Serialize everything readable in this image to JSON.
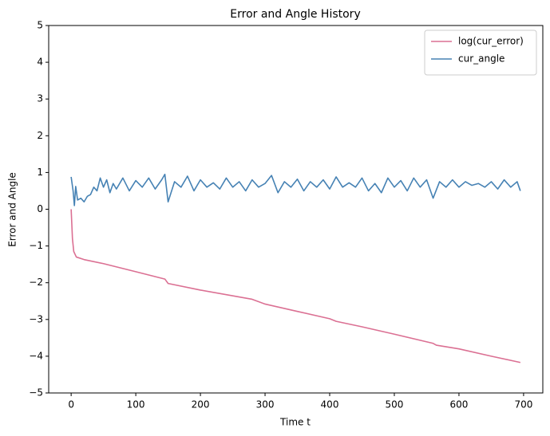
{
  "chart_data": {
    "type": "line",
    "title": "Error and Angle History",
    "xlabel": "Time t",
    "ylabel": "Error and Angle",
    "xlim": [
      -34.75,
      729.75
    ],
    "ylim": [
      -5,
      5
    ],
    "xticks": [
      0,
      100,
      200,
      300,
      400,
      500,
      600,
      700
    ],
    "yticks": [
      {
        "value": -5,
        "label": "−5"
      },
      {
        "value": -4,
        "label": "−4"
      },
      {
        "value": -3,
        "label": "−3"
      },
      {
        "value": -2,
        "label": "−2"
      },
      {
        "value": -1,
        "label": "−1"
      },
      0,
      1,
      2,
      3,
      4,
      5
    ],
    "legend": "upper right",
    "series": [
      {
        "name": "log(cur_error)",
        "color": "#db7093",
        "x": [
          0,
          2,
          4,
          8,
          20,
          50,
          100,
          145,
          150,
          200,
          280,
          300,
          350,
          400,
          410,
          450,
          500,
          560,
          565,
          600,
          650,
          695
        ],
        "values": [
          0,
          -0.8,
          -1.15,
          -1.3,
          -1.37,
          -1.48,
          -1.7,
          -1.9,
          -2.02,
          -2.2,
          -2.45,
          -2.58,
          -2.78,
          -2.98,
          -3.05,
          -3.2,
          -3.4,
          -3.65,
          -3.7,
          -3.8,
          -4.0,
          -4.17
        ]
      },
      {
        "name": "cur_angle",
        "color": "#4682b4",
        "x": [
          0,
          3,
          5,
          7,
          10,
          15,
          20,
          25,
          30,
          35,
          40,
          45,
          50,
          55,
          60,
          65,
          70,
          80,
          90,
          100,
          110,
          120,
          130,
          140,
          145,
          150,
          160,
          170,
          180,
          190,
          200,
          210,
          220,
          230,
          240,
          250,
          260,
          270,
          280,
          290,
          300,
          310,
          320,
          330,
          340,
          350,
          360,
          370,
          380,
          390,
          400,
          410,
          420,
          430,
          440,
          450,
          460,
          470,
          480,
          490,
          500,
          510,
          520,
          530,
          540,
          550,
          560,
          570,
          580,
          590,
          600,
          610,
          620,
          630,
          640,
          650,
          660,
          670,
          680,
          690,
          695
        ],
        "values": [
          0.88,
          0.5,
          0.1,
          0.62,
          0.25,
          0.3,
          0.2,
          0.35,
          0.4,
          0.6,
          0.5,
          0.85,
          0.6,
          0.8,
          0.45,
          0.7,
          0.55,
          0.85,
          0.5,
          0.78,
          0.6,
          0.85,
          0.55,
          0.8,
          0.95,
          0.2,
          0.75,
          0.6,
          0.9,
          0.5,
          0.8,
          0.6,
          0.72,
          0.55,
          0.85,
          0.6,
          0.75,
          0.5,
          0.8,
          0.6,
          0.7,
          0.92,
          0.45,
          0.75,
          0.6,
          0.82,
          0.5,
          0.75,
          0.6,
          0.8,
          0.55,
          0.88,
          0.6,
          0.72,
          0.6,
          0.85,
          0.5,
          0.7,
          0.45,
          0.85,
          0.6,
          0.78,
          0.5,
          0.85,
          0.6,
          0.8,
          0.3,
          0.75,
          0.6,
          0.8,
          0.6,
          0.75,
          0.65,
          0.7,
          0.6,
          0.75,
          0.55,
          0.8,
          0.6,
          0.75,
          0.5
        ]
      }
    ]
  }
}
